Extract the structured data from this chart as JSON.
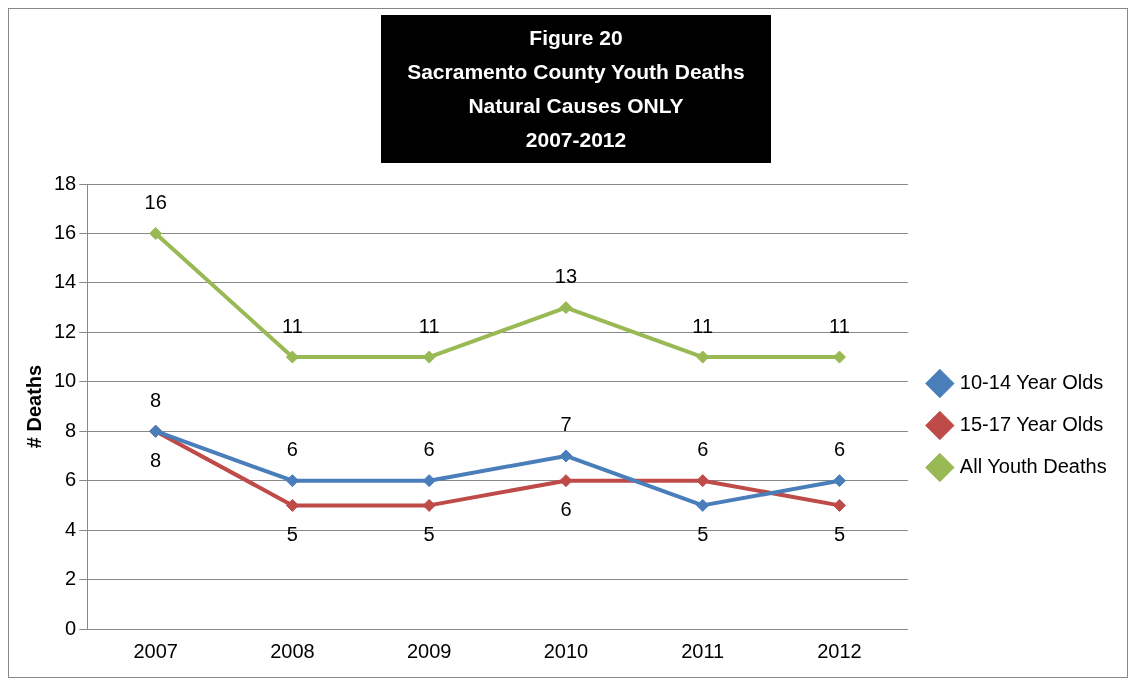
{
  "chart_data": {
    "type": "line",
    "title": "Figure 20\nSacramento County Youth Deaths\nNatural Causes ONLY\n2007-2012",
    "ylabel": "# Deaths",
    "categories": [
      "2007",
      "2008",
      "2009",
      "2010",
      "2011",
      "2012"
    ],
    "series": [
      {
        "name": "10-14 Year Olds",
        "color": "#4a7ebb",
        "values": [
          8,
          6,
          6,
          7,
          5,
          6
        ]
      },
      {
        "name": "15-17 Year Olds",
        "color": "#be4b48",
        "values": [
          8,
          5,
          5,
          6,
          6,
          5
        ]
      },
      {
        "name": "All Youth Deaths",
        "color": "#98b954",
        "values": [
          16,
          11,
          11,
          13,
          11,
          11
        ]
      }
    ],
    "ylim": [
      0,
      18
    ],
    "yticks": [
      0,
      2,
      4,
      6,
      8,
      10,
      12,
      14,
      16,
      18
    ],
    "grid": "y",
    "legend": "right",
    "marker": "diamond",
    "line_style": "solid",
    "data_labels": true
  }
}
